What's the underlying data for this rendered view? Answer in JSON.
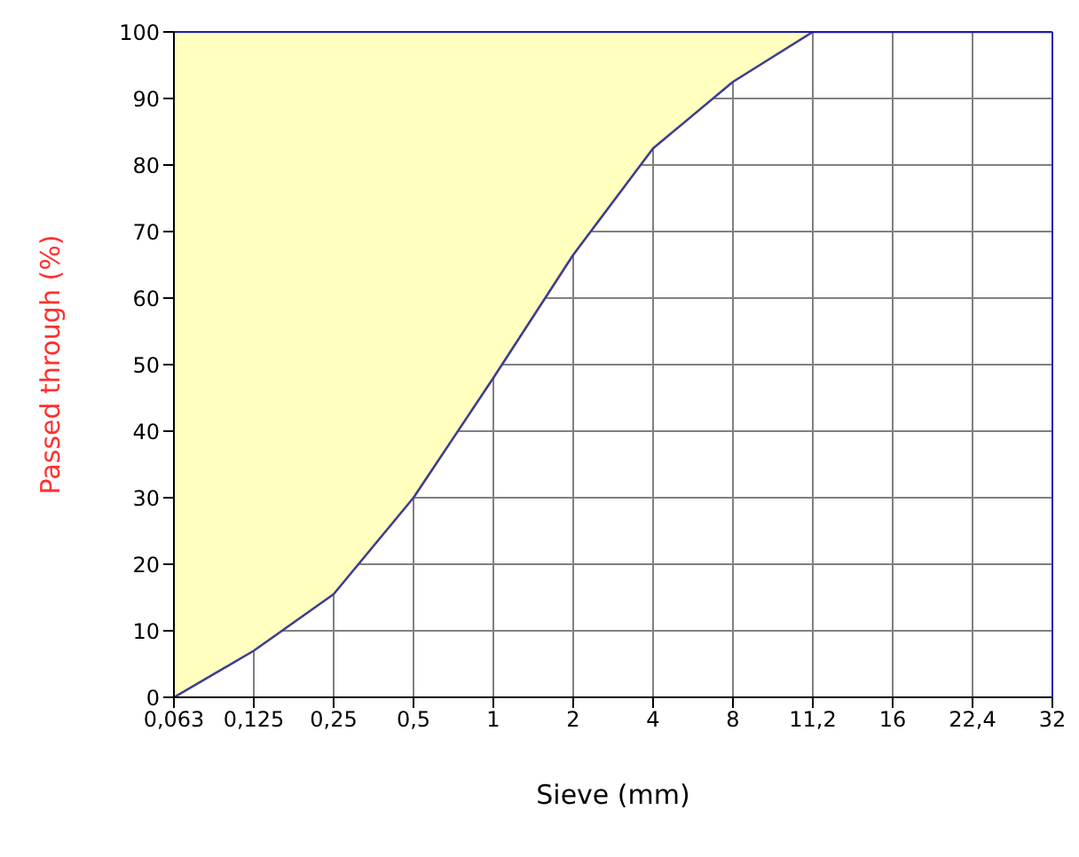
{
  "chart_data": {
    "type": "line",
    "xlabel": "Sieve (mm)",
    "ylabel": "Passed through (%)",
    "categories": [
      "0,063",
      "0,125",
      "0,25",
      "0,5",
      "1",
      "2",
      "4",
      "8",
      "11,2",
      "16",
      "22,4",
      "32"
    ],
    "series": [
      {
        "color": "#3c3c96",
        "values": [
          0,
          7,
          15.5,
          30,
          48,
          66.5,
          82.5,
          92.5,
          100,
          100,
          100,
          100
        ],
        "lower": [
          0,
          7,
          15.5,
          30,
          48,
          66.5,
          82.5,
          92.5,
          100,
          100,
          100,
          100
        ],
        "upper": [
          100,
          100,
          100,
          100,
          100,
          100,
          100,
          100,
          100,
          100,
          100,
          100
        ]
      }
    ],
    "ylim": [
      0,
      100
    ],
    "yticks": [
      0,
      10,
      20,
      30,
      40,
      50,
      60,
      70,
      80,
      90,
      100
    ],
    "grid": true,
    "marker": "none"
  }
}
